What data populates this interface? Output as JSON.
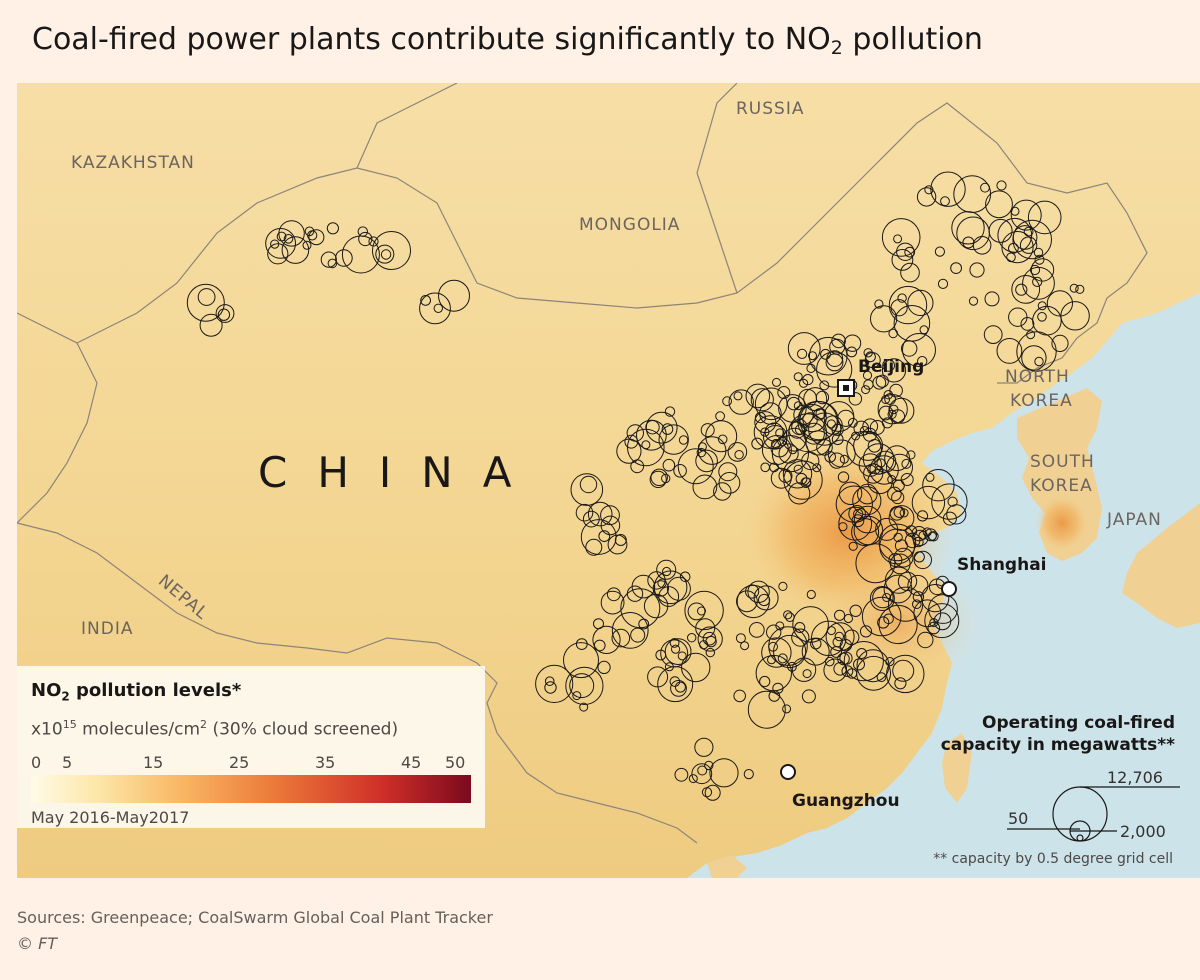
{
  "title": {
    "prefix": "Coal-fired power plants contribute significantly to NO",
    "sub": "2",
    "suffix": " pollution"
  },
  "countries": {
    "kazakhstan": "KAZAKHSTAN",
    "russia": "RUSSIA",
    "mongolia": "MONGOLIA",
    "china": "CHINA",
    "north_korea_1": "NORTH",
    "north_korea_2": "KOREA",
    "south_korea_1": "SOUTH",
    "south_korea_2": "KOREA",
    "japan": "JAPAN",
    "nepal": "NEPAL",
    "india": "INDIA"
  },
  "cities": {
    "beijing": "Beijing",
    "shanghai": "Shanghai",
    "guangzhou": "Guangzhou"
  },
  "no2_legend": {
    "title_prefix": "NO",
    "title_sub": "2",
    "title_suffix": " pollution levels*",
    "units_prefix": "x10",
    "units_exp": "15",
    "units_mid": " molecules/cm",
    "units_exp2": "2",
    "units_suffix": " (30% cloud screened)",
    "ticks": [
      "0",
      "5",
      "15",
      "25",
      "35",
      "45",
      "50"
    ],
    "period": "May 2016-May2017",
    "color_low": "#fffbe8",
    "color_high": "#7a0a1e"
  },
  "capacity_legend": {
    "title_line1": "Operating coal-fired",
    "title_line2": "capacity in megawatts**",
    "max_label": "12,706",
    "mid_label": "2,000",
    "min_label": "50",
    "note": "** capacity by 0.5 degree grid cell"
  },
  "colors": {
    "background": "#fff1e5",
    "land": "#f4d79a",
    "sea": "#cde3ea",
    "plant_circle": "#1a1817",
    "pollution_hotspot": "#e8872f"
  },
  "source": "Sources: Greenpeace; CoalSwarm Global Coal Plant Tracker",
  "copyright": "© FT"
}
